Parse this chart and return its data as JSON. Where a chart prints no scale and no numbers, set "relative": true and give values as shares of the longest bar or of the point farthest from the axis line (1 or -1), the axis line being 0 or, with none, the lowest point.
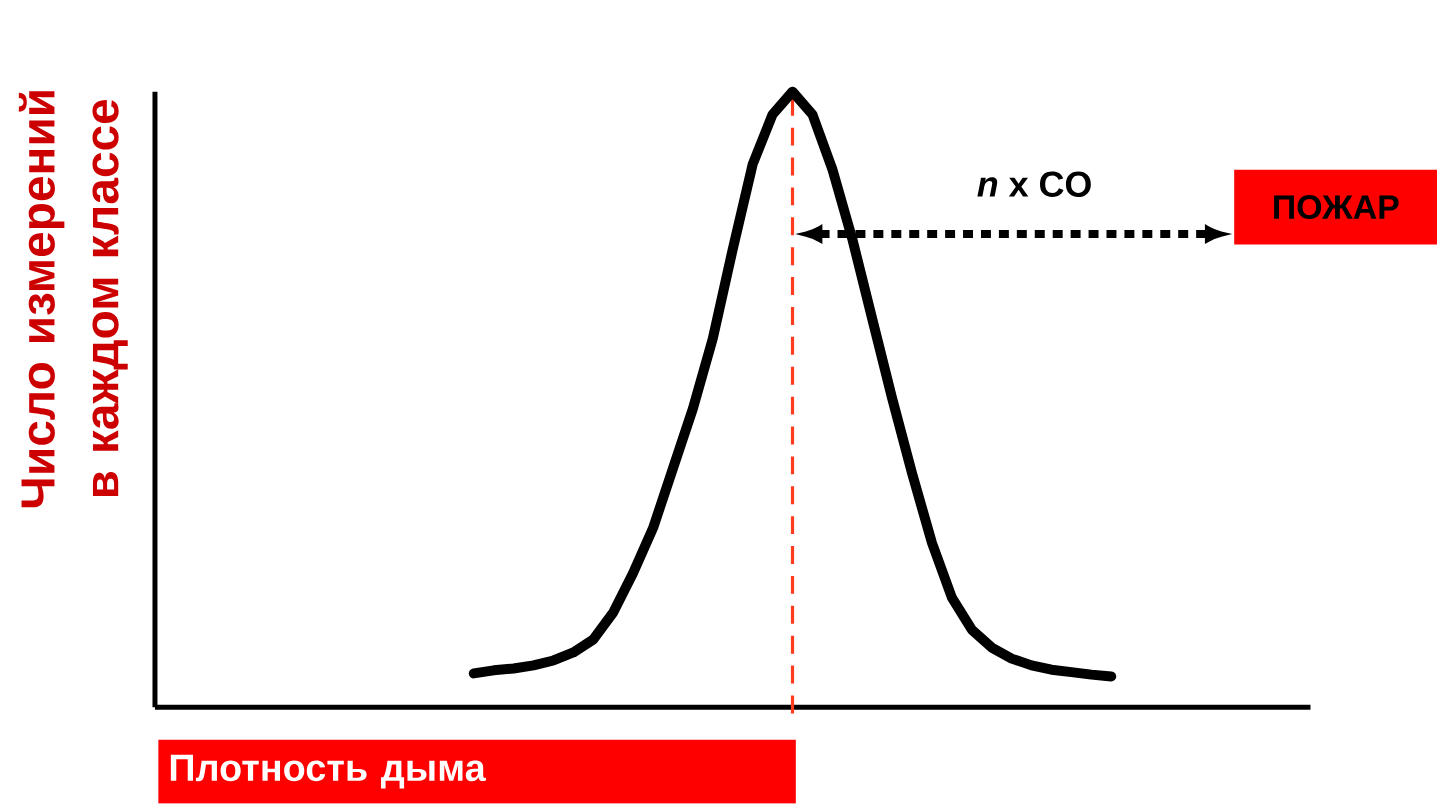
{
  "chart_data": {
    "type": "line",
    "relative": true,
    "color": "#000000",
    "xlabel": "Плотность дыма",
    "ylabel": "Число измерений в каждом классе",
    "categories": [
      null,
      null,
      null,
      null,
      null,
      null,
      null,
      null,
      null,
      null,
      null,
      null,
      null,
      null,
      null,
      null,
      null,
      null,
      null,
      null,
      null,
      null,
      null,
      null,
      null,
      null,
      null,
      null,
      null,
      null,
      null,
      null,
      null,
      null,
      null,
      null,
      null,
      null,
      null,
      null,
      null,
      null,
      null,
      null,
      null,
      null,
      null,
      null,
      null,
      null,
      null,
      null,
      null,
      null,
      null,
      null,
      null,
      null,
      null
    ],
    "values": [
      null,
      null,
      null,
      null,
      null,
      null,
      null,
      null,
      null,
      null,
      null,
      null,
      null,
      null,
      null,
      null,
      0.055,
      0.06,
      0.063,
      0.068,
      0.076,
      0.089,
      0.11,
      0.154,
      0.218,
      0.291,
      0.388,
      0.485,
      0.599,
      0.744,
      0.882,
      0.963,
      1,
      0.963,
      0.874,
      0.761,
      0.631,
      0.502,
      0.38,
      0.267,
      0.178,
      0.126,
      0.097,
      0.079,
      0.068,
      0.061,
      0.057,
      0.053,
      0.05,
      null,
      null,
      null,
      null,
      null,
      null,
      null,
      null,
      null,
      null
    ],
    "annotations": [
      "*n* x CO",
      "ПОЖАР"
    ]
  }
}
